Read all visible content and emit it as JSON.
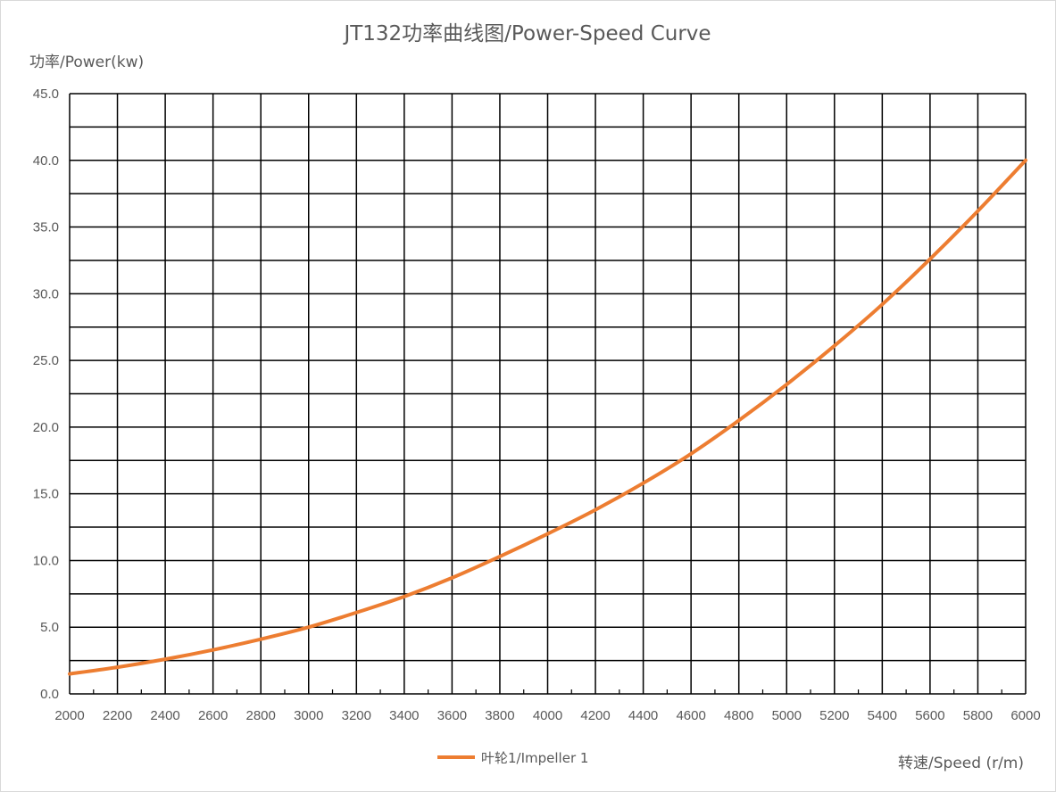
{
  "chart_data": {
    "type": "line",
    "title": "JT132功率曲线图/Power-Speed Curve",
    "ylabel": "功率/Power(kw)",
    "xlabel": "转速/Speed (r/m)",
    "xlim": [
      2000,
      6000
    ],
    "ylim": [
      0,
      45
    ],
    "x_ticks": [
      2000,
      2200,
      2400,
      2600,
      2800,
      3000,
      3200,
      3400,
      3600,
      3800,
      4000,
      4200,
      4400,
      4600,
      4800,
      5000,
      5200,
      5400,
      5600,
      5800,
      6000
    ],
    "x_tick_labels": [
      "2000",
      "2200",
      "2400",
      "2600",
      "2800",
      "3000",
      "3200",
      "3400",
      "3600",
      "3800",
      "4000",
      "4200",
      "4400",
      "4600",
      "4800",
      "5000",
      "5200",
      "5400",
      "5600",
      "5800",
      "6000"
    ],
    "y_ticks": [
      0,
      5,
      10,
      15,
      20,
      25,
      30,
      35,
      40,
      45
    ],
    "y_tick_labels": [
      "0.0",
      "5.0",
      "10.0",
      "15.0",
      "20.0",
      "25.0",
      "30.0",
      "35.0",
      "40.0",
      "45.0"
    ],
    "y_minor_gridlines": [
      2.5,
      7.5,
      12.5,
      17.5,
      22.5,
      27.5,
      32.5,
      37.5,
      42.5
    ],
    "x_minor_ticks": true,
    "grid": true,
    "legend_position": "bottom",
    "series": [
      {
        "name": "叶轮1/Impeller 1",
        "color": "#ed7d31",
        "x": [
          2000,
          2200,
          2400,
          2600,
          2800,
          3000,
          3200,
          3400,
          3600,
          3800,
          4000,
          4200,
          4400,
          4600,
          4800,
          5000,
          5200,
          5400,
          5600,
          5800,
          6000
        ],
        "y": [
          1.5,
          2.0,
          2.6,
          3.3,
          4.1,
          5.0,
          6.1,
          7.3,
          8.7,
          10.3,
          12.0,
          13.8,
          15.8,
          18.0,
          20.5,
          23.2,
          26.1,
          29.2,
          32.6,
          36.2,
          40.0
        ]
      }
    ]
  }
}
